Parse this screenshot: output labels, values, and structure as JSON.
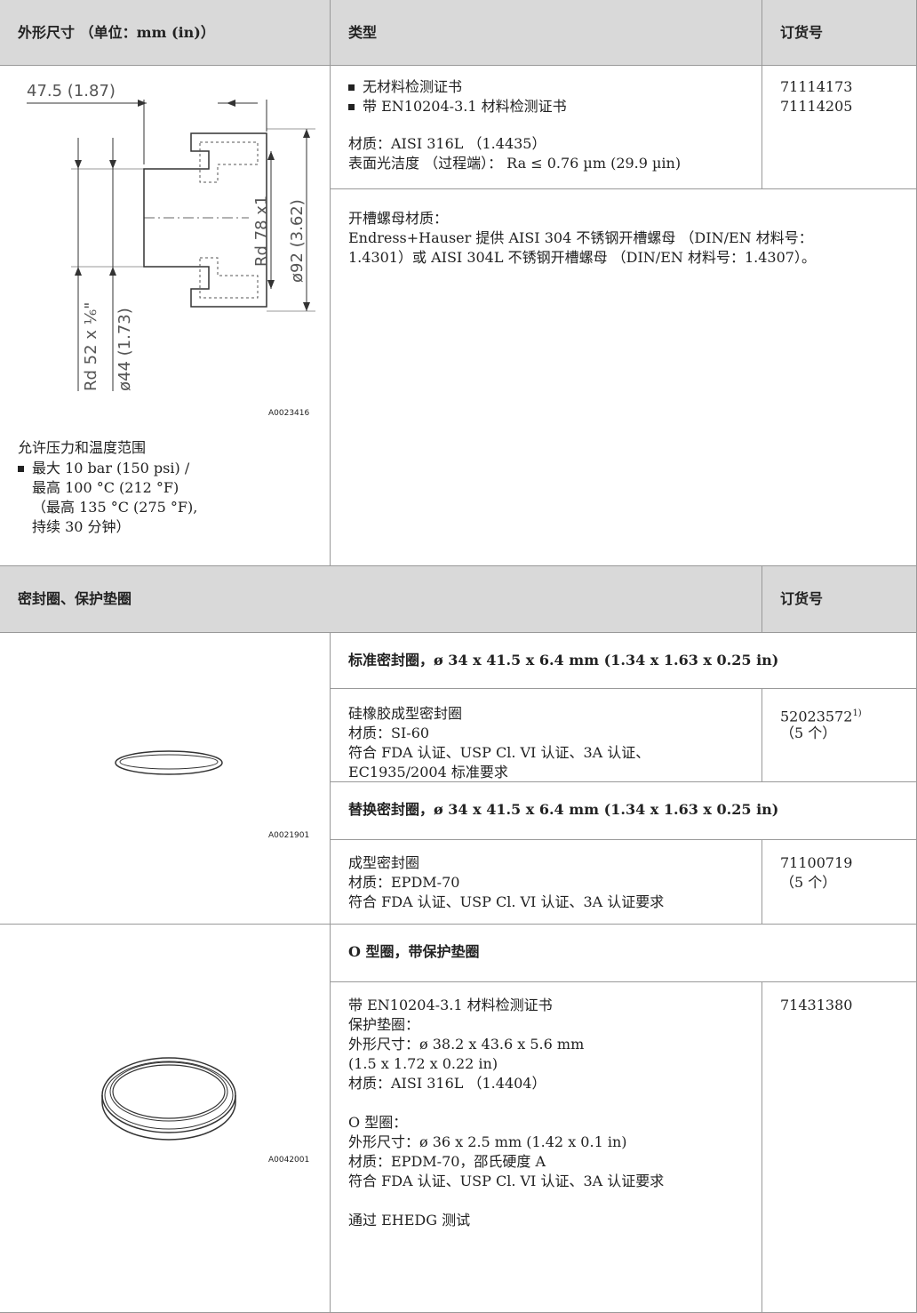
{
  "header": [
    "外形尺寸 （单位：mm (in)）",
    "类型",
    "订货号"
  ],
  "fitting": {
    "drawing_labels": [
      "47.5 (1.87)",
      "Rd 78 x1",
      "ø92 (3.62)",
      "Rd 52 x ⅙\"",
      "ø44 (1.73)"
    ],
    "drawing_id": "A0023416",
    "pressure_title": "允许压力和温度范围",
    "pressure_lines": [
      "最大 10 bar (150 psi) /",
      "最高 100 °C (212 °F)",
      "（最高 135 °C (275 °F),",
      "持续 30 分钟）"
    ],
    "type_items": [
      "无材料检测证书",
      "带 EN10204-3.1 材料检测证书"
    ],
    "type_lines": [
      "材质：AISI 316L （1.4435）",
      "表面光洁度 （过程端）： Ra ≤ 0.76 µm (29.9 µin)"
    ],
    "order": [
      "71114173",
      "71114205"
    ],
    "nut_lines": [
      "开槽螺母材质：",
      "Endress+Hauser 提供 AISI 304 不锈钢开槽螺母 （DIN/EN 材料号：",
      "1.4301）或 AISI 304L 不锈钢开槽螺母 （DIN/EN 材料号：1.4307）。"
    ]
  },
  "header2": [
    "密封圈、保护垫圈",
    "订货号"
  ],
  "seals": [
    {
      "image_id": "A0021901",
      "groups": [
        {
          "title": "标准密封圈，ø 34 x 41.5 x 6.4 mm (1.34 x 1.63 x 0.25 in)",
          "paragraphs": [
            [
              "硅橡胶成型密封圈",
              "材质：SI-60",
              "符合 FDA 认证、USP Cl. VI 认证、3A 认证、",
              "EC1935/2004 标准要求"
            ]
          ],
          "order": [
            "52023572",
            "（5 个）"
          ],
          "order_note": "1)"
        },
        {
          "title": "替换密封圈，ø 34 x 41.5 x 6.4 mm (1.34 x 1.63 x 0.25 in)",
          "paragraphs": [
            [
              "成型密封圈",
              "材质：EPDM-70",
              "符合 FDA 认证、USP Cl. VI 认证、3A 认证要求"
            ]
          ],
          "order": [
            "71100719",
            "（5 个）"
          ]
        }
      ]
    },
    {
      "image_id": "A0042001",
      "groups": [
        {
          "title": "O 型圈，带保护垫圈",
          "paragraphs": [
            [
              "带 EN10204-3.1 材料检测证书",
              "保护垫圈：",
              "外形尺寸：ø 38.2 x 43.6 x 5.6 mm",
              "(1.5 x 1.72 x 0.22 in)",
              "材质：AISI 316L （1.4404）"
            ],
            [
              "O 型圈：",
              "外形尺寸：ø 36 x 2.5 mm (1.42 x 0.1 in)",
              "材质：EPDM-70，邵氏硬度 A",
              "符合 FDA 认证、USP Cl. VI 认证、3A 认证要求"
            ],
            [
              "通过 EHEDG 测试"
            ]
          ],
          "order": [
            "71431380"
          ]
        }
      ]
    }
  ]
}
